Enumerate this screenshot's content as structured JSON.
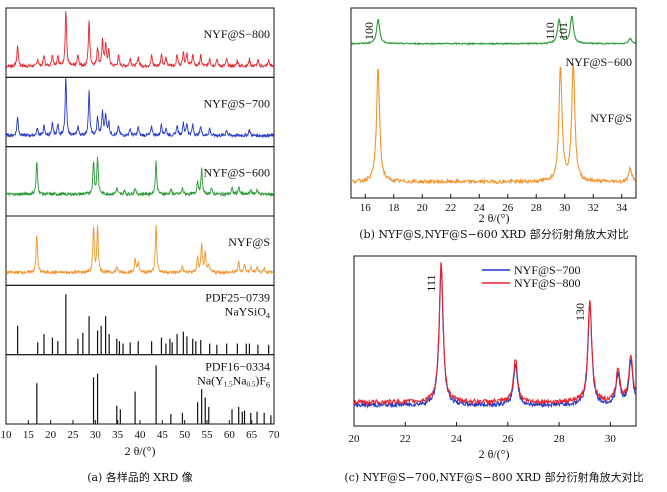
{
  "chart_data": [
    {
      "id": "a",
      "type": "line",
      "caption": "(a) 各样品的 XRD 像",
      "xlabel": "2 θ/(°)",
      "xlim": [
        10,
        70
      ],
      "xticks": [
        10,
        15,
        20,
        25,
        30,
        35,
        40,
        45,
        50,
        55,
        60,
        65,
        70
      ],
      "series": [
        {
          "name": "NYF@S−800",
          "color": "#e8262e",
          "kind": "pattern",
          "baseline": 0.12,
          "peaks": [
            [
              12.6,
              0.35
            ],
            [
              17.1,
              0.12
            ],
            [
              18.5,
              0.18
            ],
            [
              20.4,
              0.2
            ],
            [
              21.6,
              0.18
            ],
            [
              23.4,
              0.95
            ],
            [
              26.1,
              0.18
            ],
            [
              28.6,
              0.78
            ],
            [
              30.5,
              0.32
            ],
            [
              31.6,
              0.42
            ],
            [
              32.3,
              0.38
            ],
            [
              33.0,
              0.25
            ],
            [
              35.2,
              0.18
            ],
            [
              37.8,
              0.14
            ],
            [
              39.6,
              0.16
            ],
            [
              42.6,
              0.18
            ],
            [
              44.8,
              0.22
            ],
            [
              45.8,
              0.14
            ],
            [
              48.3,
              0.2
            ],
            [
              49.7,
              0.25
            ],
            [
              50.5,
              0.22
            ],
            [
              51.8,
              0.2
            ],
            [
              53.6,
              0.18
            ],
            [
              55.6,
              0.14
            ],
            [
              57.2,
              0.12
            ],
            [
              59.4,
              0.12
            ],
            [
              61.8,
              0.1
            ],
            [
              64.5,
              0.12
            ],
            [
              66.4,
              0.1
            ],
            [
              68.8,
              0.1
            ]
          ]
        },
        {
          "name": "NYF@S−700",
          "color": "#2438c9",
          "kind": "pattern",
          "baseline": 0.12,
          "peaks": [
            [
              12.6,
              0.32
            ],
            [
              17.0,
              0.12
            ],
            [
              18.5,
              0.16
            ],
            [
              20.4,
              0.2
            ],
            [
              21.6,
              0.18
            ],
            [
              23.4,
              0.98
            ],
            [
              26.1,
              0.16
            ],
            [
              28.6,
              0.74
            ],
            [
              30.5,
              0.3
            ],
            [
              31.6,
              0.4
            ],
            [
              32.3,
              0.36
            ],
            [
              33.0,
              0.22
            ],
            [
              35.2,
              0.16
            ],
            [
              37.8,
              0.12
            ],
            [
              39.6,
              0.14
            ],
            [
              42.6,
              0.16
            ],
            [
              44.8,
              0.2
            ],
            [
              45.8,
              0.12
            ],
            [
              48.3,
              0.18
            ],
            [
              49.7,
              0.22
            ],
            [
              50.5,
              0.2
            ],
            [
              51.8,
              0.18
            ],
            [
              53.6,
              0.16
            ],
            [
              55.6,
              0.12
            ],
            [
              59.4,
              0.1
            ],
            [
              64.5,
              0.1
            ]
          ]
        },
        {
          "name": "NYF@S−600",
          "color": "#2a9a35",
          "kind": "pattern",
          "baseline": 0.3,
          "peaks": [
            [
              16.9,
              0.55
            ],
            [
              29.6,
              0.55
            ],
            [
              30.5,
              0.62
            ],
            [
              34.8,
              0.1
            ],
            [
              36.5,
              0.06
            ],
            [
              38.9,
              0.1
            ],
            [
              43.6,
              0.55
            ],
            [
              46.9,
              0.08
            ],
            [
              49.5,
              0.1
            ],
            [
              52.9,
              0.22
            ],
            [
              53.8,
              0.42
            ],
            [
              56.0,
              0.1
            ],
            [
              60.6,
              0.1
            ],
            [
              62.1,
              0.12
            ],
            [
              64.8,
              0.08
            ],
            [
              66.2,
              0.08
            ]
          ]
        },
        {
          "name": "NYF@S",
          "color": "#f2952d",
          "kind": "pattern",
          "baseline": 0.15,
          "peaks": [
            [
              16.9,
              0.65
            ],
            [
              29.6,
              0.75
            ],
            [
              30.5,
              0.78
            ],
            [
              34.8,
              0.1
            ],
            [
              38.9,
              0.22
            ],
            [
              39.6,
              0.18
            ],
            [
              43.6,
              0.82
            ],
            [
              49.5,
              0.1
            ],
            [
              52.9,
              0.25
            ],
            [
              53.8,
              0.48
            ],
            [
              54.6,
              0.32
            ],
            [
              55.4,
              0.12
            ],
            [
              62.1,
              0.18
            ],
            [
              63.4,
              0.15
            ],
            [
              64.8,
              0.1
            ],
            [
              66.2,
              0.1
            ],
            [
              67.8,
              0.08
            ]
          ]
        },
        {
          "name": "PDF25−0739",
          "subname": "NaYSiO4",
          "color": "#111111",
          "kind": "sticks",
          "sticks": [
            [
              12.6,
              0.42
            ],
            [
              17.1,
              0.14
            ],
            [
              18.5,
              0.28
            ],
            [
              20.4,
              0.22
            ],
            [
              21.6,
              0.16
            ],
            [
              23.4,
              0.95
            ],
            [
              26.1,
              0.2
            ],
            [
              27.2,
              0.3
            ],
            [
              28.6,
              0.58
            ],
            [
              30.5,
              0.34
            ],
            [
              31.3,
              0.42
            ],
            [
              32.3,
              0.58
            ],
            [
              33.1,
              0.28
            ],
            [
              34.8,
              0.2
            ],
            [
              35.4,
              0.16
            ],
            [
              36.2,
              0.12
            ],
            [
              37.8,
              0.14
            ],
            [
              39.6,
              0.16
            ],
            [
              42.6,
              0.16
            ],
            [
              44.8,
              0.22
            ],
            [
              45.8,
              0.12
            ],
            [
              46.7,
              0.2
            ],
            [
              47.2,
              0.14
            ],
            [
              48.3,
              0.28
            ],
            [
              49.7,
              0.32
            ],
            [
              50.5,
              0.24
            ],
            [
              51.8,
              0.2
            ],
            [
              52.5,
              0.16
            ],
            [
              53.6,
              0.18
            ],
            [
              55.6,
              0.12
            ],
            [
              57.2,
              0.1
            ],
            [
              59.4,
              0.12
            ],
            [
              61.8,
              0.12
            ],
            [
              63.8,
              0.12
            ],
            [
              64.5,
              0.12
            ],
            [
              66.4,
              0.1
            ],
            [
              68.8,
              0.1
            ]
          ]
        },
        {
          "name": "PDF16−0334",
          "subname": "Na(Y1.5Na0.5)F6",
          "color": "#111111",
          "kind": "sticks",
          "sticks": [
            [
              16.9,
              0.62
            ],
            [
              29.6,
              0.72
            ],
            [
              30.5,
              0.78
            ],
            [
              34.8,
              0.24
            ],
            [
              35.6,
              0.18
            ],
            [
              38.9,
              0.48
            ],
            [
              43.6,
              0.92
            ],
            [
              46.9,
              0.1
            ],
            [
              49.5,
              0.12
            ],
            [
              52.9,
              0.3
            ],
            [
              53.8,
              0.52
            ],
            [
              54.6,
              0.38
            ],
            [
              55.4,
              0.22
            ],
            [
              60.6,
              0.18
            ],
            [
              62.1,
              0.22
            ],
            [
              62.9,
              0.14
            ],
            [
              63.4,
              0.16
            ],
            [
              64.8,
              0.12
            ],
            [
              66.2,
              0.14
            ],
            [
              67.8,
              0.12
            ],
            [
              69.3,
              0.08
            ]
          ]
        }
      ]
    },
    {
      "id": "b",
      "type": "line",
      "caption": "(b) NYF@S,NYF@S−600 XRD 部分衍射角放大对比",
      "xlabel": "2 θ/(°)",
      "xlim": [
        15,
        35
      ],
      "xticks": [
        16,
        18,
        20,
        22,
        24,
        26,
        28,
        30,
        32,
        34
      ],
      "series": [
        {
          "name": "NYF@S−600",
          "color": "#2a9a35",
          "baseline": 0.28,
          "peaks": [
            [
              16.9,
              0.55
            ],
            [
              29.6,
              0.55
            ],
            [
              30.5,
              0.62
            ],
            [
              34.6,
              0.12
            ]
          ]
        },
        {
          "name": "NYF@S",
          "color": "#f2952d",
          "baseline": 0.12,
          "peaks": [
            [
              16.9,
              0.96
            ],
            [
              29.7,
              0.98
            ],
            [
              30.6,
              1.0
            ],
            [
              34.6,
              0.12
            ]
          ]
        }
      ],
      "annotations": [
        {
          "text": "100",
          "x": 16.9
        },
        {
          "text": "110",
          "x": 29.6
        },
        {
          "text": "101",
          "x": 30.5
        }
      ]
    },
    {
      "id": "c",
      "type": "line",
      "caption": "(c) NYF@S−700,NYF@S−800 XRD 部分衍射角放大对比",
      "xlabel": "2 θ/(°)",
      "xlim": [
        20,
        31
      ],
      "xticks": [
        20,
        22,
        24,
        26,
        28,
        30
      ],
      "legend_position": "top-right",
      "series": [
        {
          "name": "NYF@S−700",
          "color": "#2438c9",
          "baseline": 0.06,
          "peaks": [
            [
              23.4,
              0.93
            ],
            [
              26.3,
              0.28
            ],
            [
              29.2,
              0.68
            ],
            [
              30.3,
              0.2
            ],
            [
              30.8,
              0.3
            ]
          ]
        },
        {
          "name": "NYF@S−800",
          "color": "#e8262e",
          "baseline": 0.08,
          "peaks": [
            [
              23.4,
              0.95
            ],
            [
              26.3,
              0.3
            ],
            [
              29.2,
              0.7
            ],
            [
              30.3,
              0.22
            ],
            [
              30.8,
              0.32
            ]
          ]
        }
      ],
      "annotations": [
        {
          "text": "111",
          "x": 23.4
        },
        {
          "text": "130",
          "x": 29.2
        }
      ]
    }
  ]
}
